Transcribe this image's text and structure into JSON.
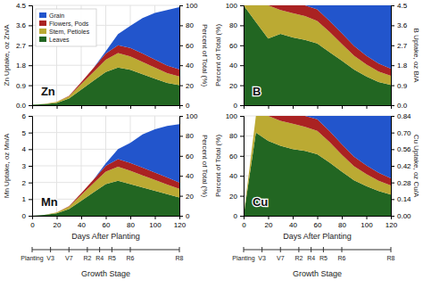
{
  "chart_data": [
    {
      "type": "area",
      "stacked": true,
      "annotations": [
        "Zn"
      ],
      "x": [
        0,
        10,
        20,
        30,
        40,
        50,
        60,
        70,
        80,
        90,
        100,
        110,
        120
      ],
      "xlim": [
        0,
        120
      ],
      "xticks": [
        0,
        20,
        40,
        60,
        80,
        100,
        120
      ],
      "ylabel": "Zn Uptake, oz Zn/A",
      "ylim": [
        0,
        4.5
      ],
      "yticks": [
        {
          "value": 0,
          "label": "0.0"
        },
        0.9,
        1.8,
        2.7,
        3.6,
        4.5
      ],
      "y2label": "Percent of Total (%)",
      "y2lim": [
        0,
        100
      ],
      "y2ticks": [
        0,
        20,
        40,
        60,
        80,
        100
      ],
      "grid": true,
      "tick_labels": "y",
      "legend": "upper left",
      "series": [
        {
          "name": "Leaves",
          "color": "#226622",
          "values": [
            0.02,
            0.05,
            0.1,
            0.3,
            0.7,
            1.1,
            1.5,
            1.7,
            1.6,
            1.4,
            1.2,
            1.0,
            0.9
          ]
        },
        {
          "name": "Stem, Petioles",
          "color": "#BBAA33",
          "values": [
            0.0,
            0.01,
            0.05,
            0.1,
            0.25,
            0.4,
            0.55,
            0.65,
            0.6,
            0.55,
            0.5,
            0.45,
            0.4
          ]
        },
        {
          "name": "Flowers, Pods",
          "color": "#AA2222",
          "values": [
            0.0,
            0.0,
            0.0,
            0.02,
            0.08,
            0.18,
            0.28,
            0.35,
            0.38,
            0.38,
            0.36,
            0.34,
            0.32
          ]
        },
        {
          "name": "Grain",
          "color": "#2255CC",
          "values": [
            0.0,
            0.0,
            0.0,
            0.0,
            0.0,
            0.0,
            0.1,
            0.5,
            1.0,
            1.6,
            2.1,
            2.5,
            2.8
          ]
        }
      ]
    },
    {
      "type": "area",
      "stacked": true,
      "annotations": [
        "B"
      ],
      "x": [
        0,
        10,
        20,
        30,
        40,
        50,
        60,
        70,
        80,
        90,
        100,
        110,
        120
      ],
      "xlim": [
        0,
        120
      ],
      "xticks": [
        0,
        20,
        40,
        60,
        80,
        100,
        120
      ],
      "ylabel": "Percent of Total (%)",
      "ylim": [
        0,
        100
      ],
      "yticks": [
        0,
        20,
        40,
        60,
        80,
        100
      ],
      "y2label": "B Uptake, oz B/A",
      "y2lim": [
        0,
        4.5
      ],
      "y2ticks": [
        {
          "value": 0,
          "label": "0.0"
        },
        0.9,
        1.8,
        2.7,
        3.6,
        4.5
      ],
      "grid": true,
      "tick_labels": "y",
      "series": [
        {
          "color": "#226622",
          "values": [
            100,
            83.33,
            66.67,
            71.43,
            67.96,
            65.48,
            61.73,
            53.125,
            44.69,
            35.62,
            28.85,
            23.31,
            20.36
          ]
        },
        {
          "color": "#BBAA33",
          "values": [
            0,
            16.67,
            33.33,
            23.81,
            24.27,
            23.81,
            22.63,
            20.3125,
            16.76,
            13.99,
            12.02,
            10.49,
            9.05
          ]
        },
        {
          "color": "#AA2222",
          "values": [
            0,
            0,
            0,
            4.76,
            7.77,
            10.71,
            11.52,
            10.9375,
            10.61,
            9.67,
            8.65,
            7.925,
            7.24
          ]
        },
        {
          "color": "#2255CC",
          "values": [
            0,
            0,
            0,
            0,
            0,
            0,
            4.12,
            15.625,
            27.93,
            40.71,
            50.48,
            58.275,
            63.35
          ]
        }
      ]
    },
    {
      "type": "area",
      "stacked": true,
      "annotations": [
        "Mn"
      ],
      "x": [
        0,
        10,
        20,
        30,
        40,
        50,
        60,
        70,
        80,
        90,
        100,
        110,
        120
      ],
      "xlim": [
        0,
        120
      ],
      "xticks": [
        0,
        20,
        40,
        60,
        80,
        100,
        120
      ],
      "xlabel": "Days After Planting",
      "ylabel": "Mn Uptake, oz Mn/A",
      "ylim": [
        0,
        6
      ],
      "yticks": [
        0,
        1,
        2,
        3,
        4,
        5,
        6
      ],
      "y2label": "Percent of Total (%)",
      "y2lim": [
        0,
        100
      ],
      "y2ticks": [
        0,
        20,
        40,
        60,
        80,
        100
      ],
      "grid": true,
      "series": [
        {
          "color": "#226622",
          "values": [
            0.0,
            0.05,
            0.15,
            0.4,
            0.9,
            1.4,
            1.9,
            2.1,
            1.9,
            1.7,
            1.5,
            1.3,
            1.1
          ]
        },
        {
          "color": "#BBAA33",
          "values": [
            0.0,
            0.01,
            0.05,
            0.15,
            0.35,
            0.55,
            0.75,
            0.85,
            0.8,
            0.72,
            0.65,
            0.58,
            0.52
          ]
        },
        {
          "color": "#AA2222",
          "values": [
            0.0,
            0.0,
            0.0,
            0.03,
            0.1,
            0.22,
            0.35,
            0.45,
            0.48,
            0.47,
            0.45,
            0.42,
            0.38
          ]
        },
        {
          "color": "#2255CC",
          "values": [
            0.0,
            0.0,
            0.0,
            0.0,
            0.0,
            0.0,
            0.15,
            0.6,
            1.2,
            2.0,
            2.6,
            3.1,
            3.5
          ]
        }
      ]
    },
    {
      "type": "area",
      "stacked": true,
      "annotations": [
        "Cu"
      ],
      "x": [
        0,
        10,
        20,
        30,
        40,
        50,
        60,
        70,
        80,
        90,
        100,
        110,
        120
      ],
      "xlim": [
        0,
        120
      ],
      "xticks": [
        0,
        20,
        40,
        60,
        80,
        100,
        120
      ],
      "xlabel": "Days After Planting",
      "ylabel": "Percent of Total (%)",
      "ylim": [
        0,
        100
      ],
      "yticks": [
        0,
        20,
        40,
        60,
        80,
        100
      ],
      "y2label": "Cu Uptake, oz Cu/A",
      "y2lim": [
        0,
        0.84
      ],
      "y2ticks": [
        {
          "value": 0,
          "label": "0.00"
        },
        0.14,
        0.28,
        0.42,
        0.56,
        {
          "value": 0.7,
          "label": "0.70"
        },
        0.84
      ],
      "grid": true,
      "series": [
        {
          "color": "#226622",
          "values": [
            0,
            83.33,
            75,
            70,
            66.67,
            65.06,
            61.67,
            53.435,
            44.22,
            35.53,
            29.76,
            24.69,
            21.16
          ]
        },
        {
          "color": "#BBAA33",
          "values": [
            0,
            16.67,
            25,
            25,
            25.49,
            24.1,
            23.33,
            20.356,
            17.01,
            14.11,
            11.9,
            10.45,
            9.2
          ]
        },
        {
          "color": "#AA2222",
          "values": [
            0,
            0,
            0,
            5,
            7.84,
            10.84,
            11.67,
            10.941,
            10.43,
            9.61,
            8.73,
            7.88,
            7.08
          ]
        },
        {
          "color": "#2255CC",
          "values": [
            0,
            0,
            0,
            0,
            0,
            0,
            3.33,
            15.267,
            28.34,
            40.75,
            49.6,
            56.98,
            62.56
          ]
        }
      ]
    },
    {
      "type": "timeline",
      "xlabel": "Growth Stage",
      "xlim": [
        0,
        120
      ],
      "x": [
        0,
        15,
        30,
        45,
        55,
        65,
        80,
        120
      ],
      "categories": [
        "Planting",
        "V3",
        "V7",
        "R2",
        "R4",
        "R5",
        "R6",
        "R8"
      ]
    },
    {
      "type": "timeline",
      "xlabel": "Growth Stage",
      "xlim": [
        0,
        120
      ],
      "x": [
        0,
        15,
        30,
        45,
        55,
        65,
        80,
        120
      ],
      "categories": [
        "Planting",
        "V3",
        "V7",
        "R2",
        "R4",
        "R5",
        "R6",
        "R8"
      ]
    }
  ]
}
